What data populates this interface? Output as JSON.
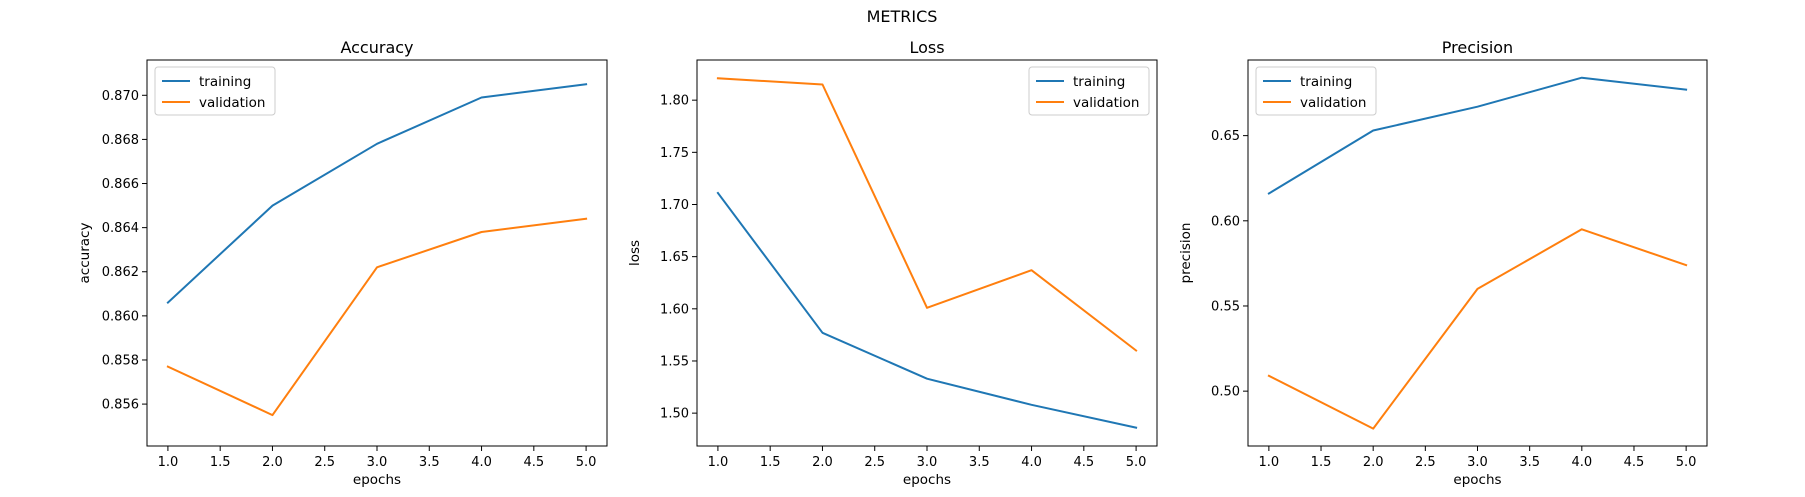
{
  "figure": {
    "suptitle": "METRICS"
  },
  "colors": {
    "training": "#1f77b4",
    "validation": "#ff7f0e",
    "axes": "#000000",
    "legend_border": "#cccccc"
  },
  "chart_data": [
    {
      "type": "line",
      "title": "Accuracy",
      "xlabel": "epochs",
      "ylabel": "accuracy",
      "x": [
        1,
        2,
        3,
        4,
        5
      ],
      "xlim": [
        0.8,
        5.2
      ],
      "ylim": [
        0.8541,
        0.8716
      ],
      "xticks": [
        1.0,
        1.5,
        2.0,
        2.5,
        3.0,
        3.5,
        4.0,
        4.5,
        5.0
      ],
      "xtick_labels": [
        "1.0",
        "1.5",
        "2.0",
        "2.5",
        "3.0",
        "3.5",
        "4.0",
        "4.5",
        "5.0"
      ],
      "yticks": [
        0.856,
        0.858,
        0.86,
        0.862,
        0.864,
        0.866,
        0.868,
        0.87
      ],
      "ytick_labels": [
        "0.856",
        "0.858",
        "0.860",
        "0.862",
        "0.864",
        "0.866",
        "0.868",
        "0.870"
      ],
      "legend_position": "top-left",
      "series": [
        {
          "name": "training",
          "color": "#1f77b4",
          "values": [
            0.8606,
            0.865,
            0.8678,
            0.8699,
            0.8705
          ]
        },
        {
          "name": "validation",
          "color": "#ff7f0e",
          "values": [
            0.8577,
            0.8555,
            0.8622,
            0.8638,
            0.8644
          ]
        }
      ]
    },
    {
      "type": "line",
      "title": "Loss",
      "xlabel": "epochs",
      "ylabel": "loss",
      "x": [
        1,
        2,
        3,
        4,
        5
      ],
      "xlim": [
        0.8,
        5.2
      ],
      "ylim": [
        1.4685,
        1.8385
      ],
      "xticks": [
        1.0,
        1.5,
        2.0,
        2.5,
        3.0,
        3.5,
        4.0,
        4.5,
        5.0
      ],
      "xtick_labels": [
        "1.0",
        "1.5",
        "2.0",
        "2.5",
        "3.0",
        "3.5",
        "4.0",
        "4.5",
        "5.0"
      ],
      "yticks": [
        1.5,
        1.55,
        1.6,
        1.65,
        1.7,
        1.75,
        1.8
      ],
      "ytick_labels": [
        "1.50",
        "1.55",
        "1.60",
        "1.65",
        "1.70",
        "1.75",
        "1.80"
      ],
      "legend_position": "top-right",
      "series": [
        {
          "name": "training",
          "color": "#1f77b4",
          "values": [
            1.711,
            1.577,
            1.533,
            1.508,
            1.486
          ]
        },
        {
          "name": "validation",
          "color": "#ff7f0e",
          "values": [
            1.821,
            1.815,
            1.601,
            1.637,
            1.56
          ]
        }
      ]
    },
    {
      "type": "line",
      "title": "Precision",
      "xlabel": "epochs",
      "ylabel": "precision",
      "x": [
        1,
        2,
        3,
        4,
        5
      ],
      "xlim": [
        0.8,
        5.2
      ],
      "ylim": [
        0.4678,
        0.6944
      ],
      "xticks": [
        1.0,
        1.5,
        2.0,
        2.5,
        3.0,
        3.5,
        4.0,
        4.5,
        5.0
      ],
      "xtick_labels": [
        "1.0",
        "1.5",
        "2.0",
        "2.5",
        "3.0",
        "3.5",
        "4.0",
        "4.5",
        "5.0"
      ],
      "yticks": [
        0.5,
        0.55,
        0.6,
        0.65
      ],
      "ytick_labels": [
        "0.50",
        "0.55",
        "0.60",
        "0.65"
      ],
      "legend_position": "top-left",
      "series": [
        {
          "name": "training",
          "color": "#1f77b4",
          "values": [
            0.616,
            0.653,
            0.667,
            0.684,
            0.677
          ]
        },
        {
          "name": "validation",
          "color": "#ff7f0e",
          "values": [
            0.509,
            0.478,
            0.56,
            0.595,
            0.574
          ]
        }
      ]
    }
  ]
}
